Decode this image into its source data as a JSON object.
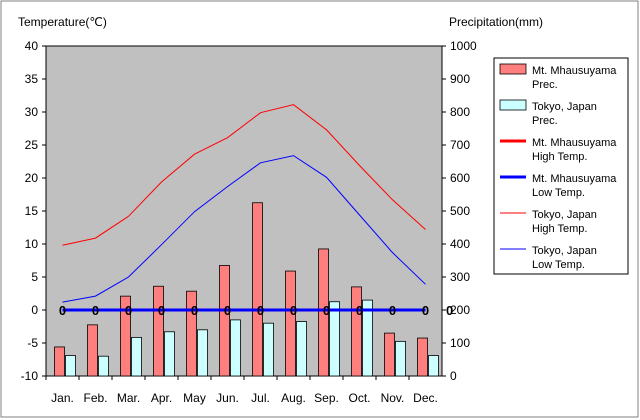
{
  "chart_data": {
    "type": "bar+line",
    "title": "",
    "y_left": {
      "label": "Temperature(℃)",
      "range": [
        -10,
        40
      ],
      "step": 5
    },
    "y_right": {
      "label": "Precipitation(mm)",
      "range": [
        0,
        1000
      ],
      "step": 100
    },
    "categories": [
      "Jan.",
      "Feb.",
      "Mar.",
      "Apr.",
      "May",
      "Jun.",
      "Jul.",
      "Aug.",
      "Sep.",
      "Oct.",
      "Nov.",
      "Dec."
    ],
    "bar_series": [
      {
        "name": "Mt. Mhausuyama Prec.",
        "legend": [
          "Mt. Mhausuyama",
          "Prec."
        ],
        "color": "#ff7f7f",
        "values": [
          88,
          155,
          242,
          272,
          257,
          335,
          525,
          318,
          385,
          270,
          130,
          115
        ]
      },
      {
        "name": "Tokyo, Japan Prec.",
        "legend": [
          "Tokyo, Japan",
          "Prec."
        ],
        "color": "#ccffff",
        "values": [
          62,
          60,
          117,
          134,
          140,
          170,
          160,
          165,
          225,
          230,
          105,
          62
        ]
      }
    ],
    "line_series": [
      {
        "name": "Mt. Mhausuyama High Temp.",
        "legend": [
          "Mt. Mhausuyama",
          "High Temp."
        ],
        "color": "#ff0000",
        "width": "thick",
        "values": [
          0,
          0,
          0,
          0,
          0,
          0,
          0,
          0,
          0,
          0,
          0,
          0
        ]
      },
      {
        "name": "Mt. Mhausuyama Low Temp.",
        "legend": [
          "Mt. Mhausuyama",
          "Low Temp."
        ],
        "color": "#0000ff",
        "width": "thick",
        "values": [
          0,
          0,
          0,
          0,
          0,
          0,
          0,
          0,
          0,
          0,
          0,
          0
        ]
      },
      {
        "name": "Tokyo, Japan High Temp.",
        "legend": [
          "Tokyo, Japan",
          "High Temp."
        ],
        "color": "#ff0000",
        "width": "thin",
        "values": [
          9.8,
          10.9,
          14.2,
          19.4,
          23.6,
          26.1,
          29.9,
          31.1,
          27.3,
          21.9,
          16.7,
          12.2
        ]
      },
      {
        "name": "Tokyo, Japan Low Temp.",
        "legend": [
          "Tokyo, Japan",
          "Low Temp."
        ],
        "color": "#0000ff",
        "width": "thin",
        "values": [
          1.2,
          2.1,
          5.0,
          9.9,
          14.9,
          18.7,
          22.3,
          23.4,
          20.1,
          14.4,
          8.7,
          3.9
        ]
      }
    ],
    "zero_markers": [
      "0",
      "0",
      "0",
      "0",
      "0",
      "0",
      "0",
      "0",
      "0",
      "0",
      "0",
      "0"
    ],
    "plot_background": "#c0c0c0",
    "legend_position": "right"
  }
}
